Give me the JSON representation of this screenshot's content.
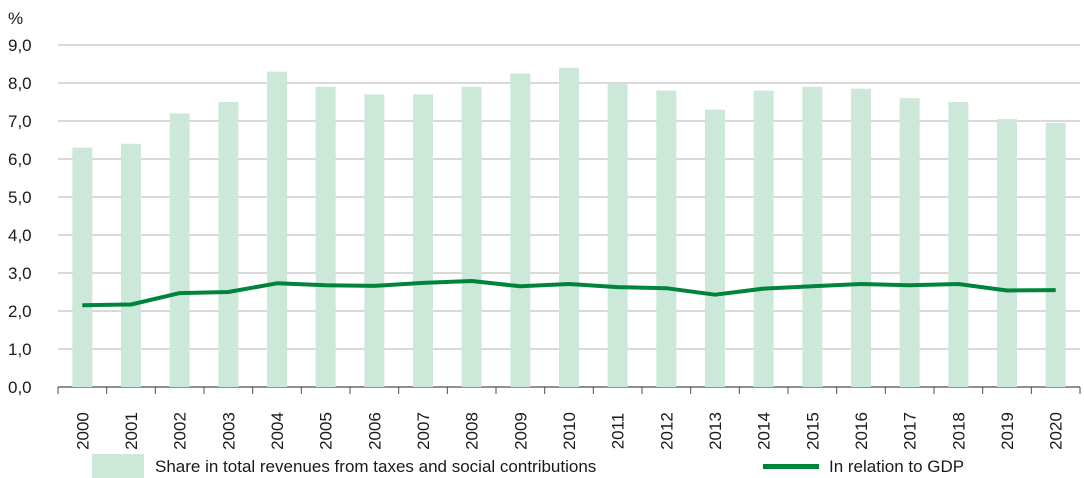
{
  "chart_data": {
    "type": "bar",
    "categories": [
      "2000",
      "2001",
      "2002",
      "2003",
      "2004",
      "2005",
      "2006",
      "2007",
      "2008",
      "2009",
      "2010",
      "2011",
      "2012",
      "2013",
      "2014",
      "2015",
      "2016",
      "2017",
      "2018",
      "2019",
      "2020"
    ],
    "series": [
      {
        "name": "Share in total revenues from taxes and social contributions",
        "type": "bar",
        "color": "#cce8d9",
        "values": [
          6.3,
          6.4,
          7.2,
          7.5,
          8.3,
          7.9,
          7.7,
          7.7,
          7.9,
          8.25,
          8.4,
          8.0,
          7.8,
          7.3,
          7.8,
          7.9,
          7.85,
          7.6,
          7.5,
          7.05,
          6.95
        ]
      },
      {
        "name": "In relation to GDP",
        "type": "line",
        "color": "#00843d",
        "values": [
          2.15,
          2.17,
          2.47,
          2.5,
          2.73,
          2.68,
          2.66,
          2.74,
          2.79,
          2.65,
          2.71,
          2.63,
          2.6,
          2.43,
          2.59,
          2.65,
          2.71,
          2.68,
          2.71,
          2.54,
          2.55
        ]
      }
    ],
    "y_unit": "%",
    "ylim": [
      0,
      9
    ],
    "yticks": [
      "0,0",
      "1,0",
      "2,0",
      "3,0",
      "4,0",
      "5,0",
      "6,0",
      "7,0",
      "8,0",
      "9,0"
    ],
    "grid": true,
    "legend_position": "bottom"
  }
}
